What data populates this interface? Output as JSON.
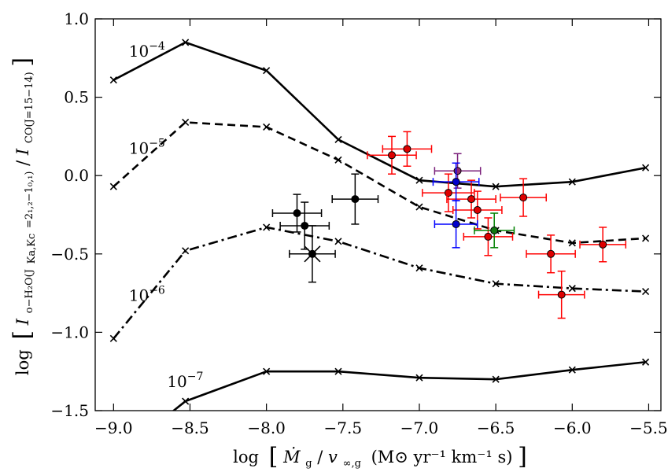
{
  "chart_data": {
    "type": "scatter",
    "title": "",
    "xlabel_parts": {
      "log": "log",
      "lbr": "[",
      "mdot": "Ṁ",
      "sub_g": "g",
      "slash": "/",
      "v": "v",
      "sub_vinf": "∞,g",
      "units": "(M⊙ yr⁻¹ km⁻¹ s)",
      "rbr": "]"
    },
    "ylabel_parts": {
      "log": "log",
      "lbr": "[",
      "I1": "I",
      "sub1": "o−H₂O(J",
      "sub1_kk": "Ka,Kc",
      "sub1_b": "=2₁,₂−1₀,₁)",
      "slash": "/",
      "I2": "I",
      "sub2": "CO(J=15−14)",
      "rbr": "]"
    },
    "xlim": [
      -9.12,
      -5.42
    ],
    "ylim": [
      -1.5,
      1.0
    ],
    "xticks": [
      -9.0,
      -8.5,
      -8.0,
      -7.5,
      -7.0,
      -6.5,
      -6.0,
      -5.5
    ],
    "xtick_labels": [
      "−9.0",
      "−8.5",
      "−8.0",
      "−7.5",
      "−7.0",
      "−6.5",
      "−6.0",
      "−5.5"
    ],
    "yticks": [
      1.0,
      0.5,
      0.0,
      -0.5,
      -1.0,
      -1.5
    ],
    "ytick_labels": [
      "1.0",
      "0.5",
      "0.0",
      "−0.5",
      "−1.0",
      "−1.5"
    ],
    "model_curves": [
      {
        "name": "1e-4",
        "label_base": "10",
        "label_exp": "−4",
        "style": "solid",
        "x": [
          -9.0,
          -8.53,
          -8.0,
          -7.53,
          -7.0,
          -6.5,
          -6.0,
          -5.52
        ],
        "y": [
          0.61,
          0.85,
          0.67,
          0.23,
          -0.03,
          -0.07,
          -0.04,
          0.05
        ]
      },
      {
        "name": "1e-5",
        "label_base": "10",
        "label_exp": "−5",
        "style": "dashed",
        "x": [
          -9.0,
          -8.53,
          -8.0,
          -7.53,
          -7.0,
          -6.5,
          -6.0,
          -5.52
        ],
        "y": [
          -0.07,
          0.34,
          0.31,
          0.1,
          -0.2,
          -0.35,
          -0.43,
          -0.4
        ]
      },
      {
        "name": "1e-6",
        "label_base": "10",
        "label_exp": "−6",
        "style": "dashdot",
        "x": [
          -9.0,
          -8.53,
          -8.0,
          -7.53,
          -7.0,
          -6.5,
          -6.0,
          -5.52
        ],
        "y": [
          -1.04,
          -0.48,
          -0.33,
          -0.42,
          -0.59,
          -0.69,
          -0.72,
          -0.74
        ]
      },
      {
        "name": "1e-7",
        "label_base": "10",
        "label_exp": "−7",
        "style": "solid",
        "x": [
          -8.53,
          -8.0,
          -7.53,
          -7.0,
          -6.5,
          -6.0,
          -5.52
        ],
        "y": [
          -1.44,
          -1.25,
          -1.25,
          -1.29,
          -1.3,
          -1.24,
          -1.19
        ]
      }
    ],
    "curve_label_positions": [
      {
        "x": -8.9,
        "y": 0.76
      },
      {
        "x": -8.9,
        "y": 0.14
      },
      {
        "x": -8.9,
        "y": -0.8
      },
      {
        "x": -8.65,
        "y": -1.35
      }
    ],
    "observations": [
      {
        "group": "black",
        "x": -7.8,
        "y": -0.24,
        "xerr": 0.16,
        "yerr": 0.12,
        "marker": "circle"
      },
      {
        "group": "black",
        "x": -7.75,
        "y": -0.32,
        "xerr": 0.16,
        "yerr": 0.15,
        "marker": "circle"
      },
      {
        "group": "black",
        "x": -7.42,
        "y": -0.15,
        "xerr": 0.15,
        "yerr": 0.16,
        "marker": "circle"
      },
      {
        "group": "black",
        "x": -7.7,
        "y": -0.5,
        "xerr": 0.15,
        "yerr": 0.18,
        "marker": "star"
      },
      {
        "group": "red",
        "x": -7.18,
        "y": 0.13,
        "xerr": 0.16,
        "yerr": 0.12,
        "marker": "circle"
      },
      {
        "group": "red",
        "x": -7.08,
        "y": 0.17,
        "xerr": 0.16,
        "yerr": 0.11,
        "marker": "circle"
      },
      {
        "group": "purple",
        "x": -6.75,
        "y": 0.03,
        "xerr": 0.15,
        "yerr": 0.11,
        "marker": "circle"
      },
      {
        "group": "red",
        "x": -6.81,
        "y": -0.11,
        "xerr": 0.17,
        "yerr": 0.12,
        "marker": "circle"
      },
      {
        "group": "red",
        "x": -6.66,
        "y": -0.15,
        "xerr": 0.16,
        "yerr": 0.12,
        "marker": "circle"
      },
      {
        "group": "red",
        "x": -6.62,
        "y": -0.22,
        "xerr": 0.16,
        "yerr": 0.12,
        "marker": "circle"
      },
      {
        "group": "red",
        "x": -6.32,
        "y": -0.14,
        "xerr": 0.15,
        "yerr": 0.12,
        "marker": "circle"
      },
      {
        "group": "red",
        "x": -6.55,
        "y": -0.39,
        "xerr": 0.16,
        "yerr": 0.12,
        "marker": "circle"
      },
      {
        "group": "red",
        "x": -6.14,
        "y": -0.5,
        "xerr": 0.16,
        "yerr": 0.12,
        "marker": "circle"
      },
      {
        "group": "red",
        "x": -6.07,
        "y": -0.76,
        "xerr": 0.15,
        "yerr": 0.15,
        "marker": "circle"
      },
      {
        "group": "red",
        "x": -5.8,
        "y": -0.44,
        "xerr": 0.15,
        "yerr": 0.11,
        "marker": "circle"
      },
      {
        "group": "blue",
        "x": -6.76,
        "y": -0.04,
        "xerr": 0.15,
        "yerr": 0.12,
        "marker": "circle"
      },
      {
        "group": "blue",
        "x": -6.76,
        "y": -0.31,
        "xerr": 0.14,
        "yerr": 0.15,
        "marker": "circle"
      },
      {
        "group": "green",
        "x": -6.51,
        "y": -0.35,
        "xerr": 0.13,
        "yerr": 0.11,
        "marker": "circle"
      }
    ],
    "group_colors": {
      "black": "#000000",
      "red": "#ff0000",
      "blue": "#0000ff",
      "green": "#008000",
      "purple": "#7a1f7a"
    },
    "marker_fill": {
      "black": "#000000",
      "red": "#dd0000",
      "blue": "#0000cc",
      "green": "#117711",
      "purple": "#8e2a6e"
    },
    "curve_color": "#000000"
  }
}
